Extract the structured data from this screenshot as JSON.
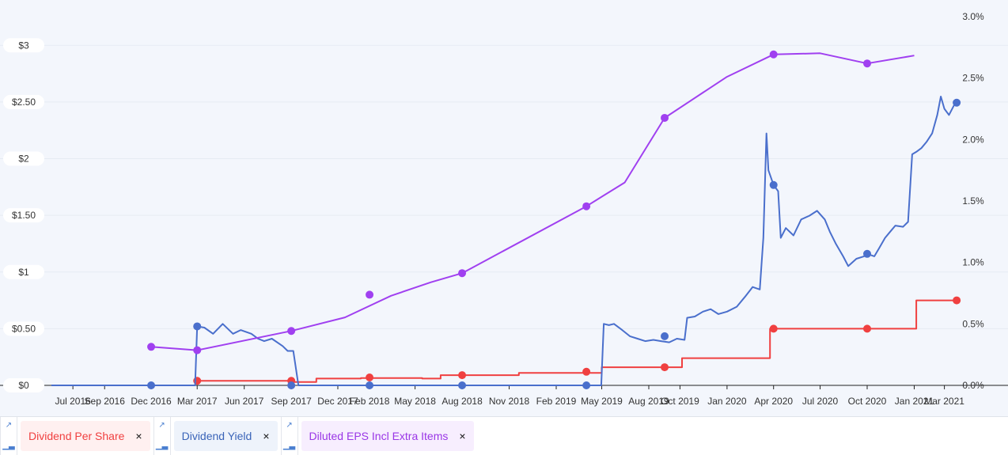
{
  "chart_data": {
    "type": "line",
    "left_axis": {
      "ticks": [
        "$0",
        "$0.50",
        "$1",
        "$1.50",
        "$2",
        "$2.50",
        "$3"
      ],
      "values": [
        0,
        0.5,
        1,
        1.5,
        2,
        2.5,
        3
      ],
      "range": [
        0,
        3.4
      ]
    },
    "right_axis": {
      "ticks": [
        "0.0%",
        "0.5%",
        "1.0%",
        "1.5%",
        "2.0%",
        "2.5%",
        "3.0%"
      ],
      "values": [
        0,
        0.5,
        1.0,
        1.5,
        2.0,
        2.5,
        3.0
      ],
      "range": [
        0,
        3.0
      ]
    },
    "x_axis": {
      "ticks": [
        "Jul 2016",
        "Sep 2016",
        "Dec 2016",
        "Mar 2017",
        "Jun 2017",
        "Sep 2017",
        "Dec 2017",
        "Feb 2018",
        "May 2018",
        "Aug 2018",
        "Nov 2018",
        "Feb 2019",
        "May 2019",
        "Aug 2019",
        "Oct 2019",
        "Jan 2020",
        "Apr 2020",
        "Jul 2020",
        "Oct 2020",
        "Jan 2021",
        "Mar 2021"
      ],
      "tick_dates": [
        "2016-07-01",
        "2016-09-01",
        "2016-12-01",
        "2017-03-01",
        "2017-06-01",
        "2017-09-01",
        "2017-12-01",
        "2018-02-01",
        "2018-05-01",
        "2018-08-01",
        "2018-11-01",
        "2019-02-01",
        "2019-05-01",
        "2019-08-01",
        "2019-10-01",
        "2020-01-01",
        "2020-04-01",
        "2020-07-01",
        "2020-10-01",
        "2021-01-01",
        "2021-03-01"
      ],
      "range": [
        "2016-05-20",
        "2021-03-31"
      ]
    },
    "series": [
      {
        "name": "Dividend Per Share",
        "axis": "left",
        "color": "#f04040",
        "step": true,
        "line": [
          [
            "2017-03-01",
            0.04
          ],
          [
            "2017-09-01",
            0.03
          ],
          [
            "2017-10-15",
            0.03
          ],
          [
            "2017-10-20",
            0.06
          ],
          [
            "2018-01-15",
            0.065
          ],
          [
            "2018-05-15",
            0.06
          ],
          [
            "2018-06-15",
            0.06
          ],
          [
            "2018-06-20",
            0.09
          ],
          [
            "2018-11-15",
            0.09
          ],
          [
            "2018-11-20",
            0.11
          ],
          [
            "2019-04-30",
            0.11
          ],
          [
            "2019-05-01",
            0.16
          ],
          [
            "2019-10-01",
            0.16
          ],
          [
            "2019-10-05",
            0.24
          ],
          [
            "2020-03-20",
            0.24
          ],
          [
            "2020-03-25",
            0.5
          ],
          [
            "2020-12-31",
            0.5
          ],
          [
            "2021-01-05",
            0.75
          ],
          [
            "2021-03-25",
            0.75
          ]
        ],
        "markers": [
          [
            "2017-03-01",
            0.04
          ],
          [
            "2017-09-01",
            0.04
          ],
          [
            "2018-02-01",
            0.07
          ],
          [
            "2018-08-01",
            0.09
          ],
          [
            "2019-04-01",
            0.12
          ],
          [
            "2019-09-01",
            0.16
          ],
          [
            "2020-04-01",
            0.5
          ],
          [
            "2020-10-01",
            0.5
          ],
          [
            "2021-03-25",
            0.75
          ]
        ]
      },
      {
        "name": "Dividend Yield",
        "axis": "right",
        "color": "#4a6fcc",
        "step": false,
        "line": [
          [
            "2016-05-20",
            0.0
          ],
          [
            "2017-02-25",
            0.0
          ],
          [
            "2017-03-01",
            0.48
          ],
          [
            "2017-03-15",
            0.47
          ],
          [
            "2017-04-01",
            0.42
          ],
          [
            "2017-04-20",
            0.5
          ],
          [
            "2017-05-10",
            0.42
          ],
          [
            "2017-05-25",
            0.45
          ],
          [
            "2017-06-15",
            0.42
          ],
          [
            "2017-06-28",
            0.38
          ],
          [
            "2017-07-10",
            0.36
          ],
          [
            "2017-07-25",
            0.38
          ],
          [
            "2017-08-15",
            0.32
          ],
          [
            "2017-08-25",
            0.28
          ],
          [
            "2017-09-05",
            0.28
          ],
          [
            "2017-09-15",
            0.0
          ],
          [
            "2019-04-30",
            0.0
          ],
          [
            "2019-05-05",
            0.5
          ],
          [
            "2019-05-15",
            0.49
          ],
          [
            "2019-05-25",
            0.5
          ],
          [
            "2019-06-10",
            0.45
          ],
          [
            "2019-06-25",
            0.4
          ],
          [
            "2019-07-10",
            0.38
          ],
          [
            "2019-07-25",
            0.36
          ],
          [
            "2019-08-10",
            0.37
          ],
          [
            "2019-08-25",
            0.36
          ],
          [
            "2019-09-10",
            0.35
          ],
          [
            "2019-09-25",
            0.38
          ],
          [
            "2019-10-10",
            0.37
          ],
          [
            "2019-10-15",
            0.55
          ],
          [
            "2019-10-30",
            0.56
          ],
          [
            "2019-11-15",
            0.6
          ],
          [
            "2019-11-30",
            0.62
          ],
          [
            "2019-12-15",
            0.58
          ],
          [
            "2020-01-01",
            0.6
          ],
          [
            "2020-01-20",
            0.64
          ],
          [
            "2020-02-05",
            0.72
          ],
          [
            "2020-02-20",
            0.8
          ],
          [
            "2020-03-05",
            0.78
          ],
          [
            "2020-03-12",
            1.2
          ],
          [
            "2020-03-18",
            2.05
          ],
          [
            "2020-03-22",
            1.75
          ],
          [
            "2020-04-01",
            1.63
          ],
          [
            "2020-04-10",
            1.58
          ],
          [
            "2020-04-15",
            1.2
          ],
          [
            "2020-04-25",
            1.28
          ],
          [
            "2020-05-10",
            1.22
          ],
          [
            "2020-05-25",
            1.35
          ],
          [
            "2020-06-10",
            1.38
          ],
          [
            "2020-06-25",
            1.42
          ],
          [
            "2020-07-10",
            1.35
          ],
          [
            "2020-07-20",
            1.25
          ],
          [
            "2020-08-01",
            1.15
          ],
          [
            "2020-08-15",
            1.05
          ],
          [
            "2020-08-25",
            0.97
          ],
          [
            "2020-09-10",
            1.03
          ],
          [
            "2020-09-25",
            1.05
          ],
          [
            "2020-10-01",
            1.07
          ],
          [
            "2020-10-15",
            1.05
          ],
          [
            "2020-10-25",
            1.12
          ],
          [
            "2020-11-05",
            1.2
          ],
          [
            "2020-11-15",
            1.25
          ],
          [
            "2020-11-25",
            1.3
          ],
          [
            "2020-12-10",
            1.29
          ],
          [
            "2020-12-20",
            1.33
          ],
          [
            "2020-12-28",
            1.88
          ],
          [
            "2021-01-05",
            1.9
          ],
          [
            "2021-01-15",
            1.93
          ],
          [
            "2021-01-25",
            1.98
          ],
          [
            "2021-02-05",
            2.05
          ],
          [
            "2021-02-15",
            2.2
          ],
          [
            "2021-02-22",
            2.35
          ],
          [
            "2021-03-01",
            2.25
          ],
          [
            "2021-03-10",
            2.2
          ],
          [
            "2021-03-20",
            2.28
          ],
          [
            "2021-03-25",
            2.3
          ]
        ],
        "markers": [
          [
            "2016-12-01",
            0.0
          ],
          [
            "2017-03-01",
            0.48
          ],
          [
            "2017-09-01",
            0.0
          ],
          [
            "2018-02-01",
            0.0
          ],
          [
            "2018-08-01",
            0.0
          ],
          [
            "2019-04-01",
            0.0
          ],
          [
            "2019-09-01",
            0.4
          ],
          [
            "2020-04-01",
            1.63
          ],
          [
            "2020-10-01",
            1.07
          ],
          [
            "2021-03-25",
            2.3
          ]
        ]
      },
      {
        "name": "Diluted EPS Incl Extra Items",
        "axis": "left",
        "color": "#a040f0",
        "step": false,
        "line": [
          [
            "2016-12-01",
            0.34
          ],
          [
            "2017-03-01",
            0.31
          ],
          [
            "2017-09-01",
            0.48
          ],
          [
            "2017-12-15",
            0.6
          ],
          [
            "2018-03-15",
            0.79
          ],
          [
            "2018-06-01",
            0.91
          ],
          [
            "2018-08-01",
            0.99
          ],
          [
            "2019-04-01",
            1.58
          ],
          [
            "2019-06-15",
            1.79
          ],
          [
            "2019-09-01",
            2.36
          ],
          [
            "2019-12-31",
            2.72
          ],
          [
            "2020-04-01",
            2.92
          ],
          [
            "2020-07-01",
            2.93
          ],
          [
            "2020-10-01",
            2.84
          ],
          [
            "2021-01-01",
            2.91
          ]
        ],
        "markers": [
          [
            "2016-12-01",
            0.34
          ],
          [
            "2017-03-01",
            0.31
          ],
          [
            "2017-09-01",
            0.48
          ],
          [
            "2018-02-01",
            0.8
          ],
          [
            "2018-08-01",
            0.99
          ],
          [
            "2019-04-01",
            1.58
          ],
          [
            "2019-09-01",
            2.36
          ],
          [
            "2020-04-01",
            2.92
          ],
          [
            "2020-10-01",
            2.84
          ]
        ]
      }
    ],
    "grid": true
  },
  "legend": [
    {
      "label": "Dividend Per Share",
      "color": "#f04040",
      "bg": "#fff0f0",
      "close": "×",
      "icon_line": "line-chart-icon",
      "icon_bar": "bar-chart-icon"
    },
    {
      "label": "Dividend Yield",
      "color": "#3a64b8",
      "bg": "#eef3fb",
      "close": "×",
      "icon_line": "line-chart-icon",
      "icon_bar": "bar-chart-icon"
    },
    {
      "label": "Diluted EPS Incl Extra Items",
      "color": "#9a36e6",
      "bg": "#f7eefe",
      "close": "×",
      "icon_line": "line-chart-icon",
      "icon_bar": "bar-chart-icon"
    }
  ]
}
